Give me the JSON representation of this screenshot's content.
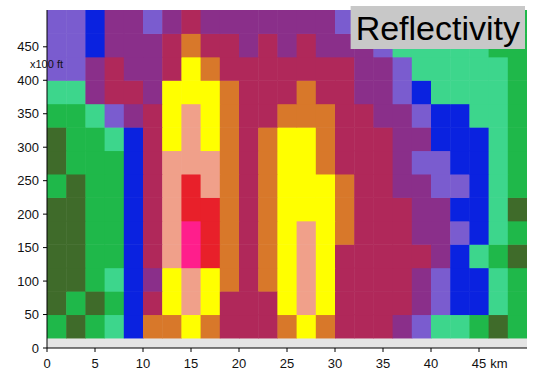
{
  "chart_data": {
    "type": "heatmap",
    "title": "Reflectivity",
    "xlabel": "km",
    "ylabel": "x100 ft",
    "xlim": [
      0,
      50
    ],
    "ylim": [
      0,
      505
    ],
    "xticks": [
      0,
      5,
      10,
      15,
      20,
      25,
      30,
      35,
      40,
      45
    ],
    "yticks": [
      0,
      50,
      100,
      150,
      200,
      250,
      300,
      350,
      400,
      450
    ],
    "x_edges": [
      0,
      2,
      4,
      6,
      8,
      10,
      12,
      14,
      16,
      18,
      20,
      22,
      24,
      26,
      28,
      30,
      32,
      34,
      36,
      38,
      40,
      42,
      44,
      46,
      48,
      50
    ],
    "y_edges": [
      15,
      50,
      85,
      120,
      155,
      190,
      225,
      260,
      295,
      330,
      365,
      400,
      435,
      470,
      505
    ],
    "cells": [
      [
        12,
        8,
        12,
        17,
        22,
        42,
        44,
        47,
        43,
        37,
        36,
        38,
        44,
        48,
        42,
        38,
        37,
        36,
        33,
        27,
        18,
        15,
        14,
        8,
        12
      ],
      [
        8,
        12,
        9,
        14,
        22,
        38,
        47,
        52,
        47,
        38,
        36,
        37,
        46,
        52,
        46,
        38,
        37,
        37,
        36,
        33,
        27,
        22,
        22,
        16,
        14
      ],
      [
        8,
        9,
        12,
        17,
        23,
        33,
        48,
        53,
        49,
        40,
        37,
        40,
        47,
        52,
        48,
        38,
        37,
        38,
        37,
        34,
        28,
        24,
        22,
        17,
        12
      ],
      [
        9,
        8,
        12,
        13,
        24,
        37,
        50,
        62,
        56,
        40,
        38,
        41,
        48,
        53,
        49,
        39,
        38,
        37,
        36,
        35,
        30,
        24,
        18,
        14,
        8
      ],
      [
        8,
        9,
        13,
        12,
        23,
        36,
        51,
        62,
        57,
        41,
        38,
        42,
        48,
        52,
        48,
        40,
        38,
        37,
        36,
        33,
        32,
        26,
        22,
        18,
        14
      ],
      [
        9,
        8,
        12,
        14,
        22,
        37,
        52,
        58,
        55,
        41,
        38,
        42,
        47,
        49,
        46,
        40,
        37,
        36,
        35,
        33,
        30,
        24,
        22,
        17,
        9
      ],
      [
        12,
        9,
        13,
        14,
        24,
        38,
        52,
        57,
        53,
        42,
        38,
        42,
        47,
        48,
        46,
        40,
        37,
        36,
        34,
        30,
        28,
        25,
        23,
        16,
        10
      ],
      [
        8,
        12,
        13,
        12,
        23,
        38,
        51,
        54,
        50,
        41,
        38,
        41,
        46,
        47,
        44,
        39,
        37,
        35,
        33,
        28,
        25,
        22,
        21,
        16,
        12
      ],
      [
        9,
        12,
        13,
        17,
        24,
        38,
        49,
        53,
        48,
        41,
        38,
        40,
        45,
        46,
        43,
        38,
        36,
        35,
        33,
        32,
        23,
        22,
        22,
        17,
        14
      ],
      [
        14,
        12,
        17,
        27,
        34,
        38,
        47,
        51,
        47,
        42,
        37,
        38,
        42,
        44,
        42,
        38,
        35,
        34,
        32,
        26,
        22,
        24,
        17,
        16,
        13
      ],
      [
        17,
        18,
        33,
        37,
        36,
        33,
        46,
        48,
        45,
        41,
        38,
        37,
        39,
        41,
        39,
        37,
        34,
        32,
        27,
        23,
        18,
        17,
        16,
        17,
        14
      ],
      [
        27,
        27,
        33,
        36,
        34,
        32,
        37,
        46,
        42,
        38,
        35,
        36,
        37,
        37,
        36,
        35,
        33,
        30,
        26,
        17,
        16,
        18,
        16,
        17,
        13
      ],
      [
        26,
        27,
        24,
        33,
        32,
        30,
        36,
        41,
        38,
        35,
        34,
        35,
        34,
        35,
        33,
        32,
        30,
        27,
        17,
        16,
        17,
        16,
        15,
        14,
        13
      ],
      [
        26,
        26,
        23,
        31,
        30,
        28,
        33,
        36,
        33,
        32,
        31,
        31,
        31,
        32,
        30,
        28,
        26,
        22,
        17,
        16,
        15,
        14,
        14,
        13,
        12
      ]
    ],
    "color_scale": {
      "bounds": [
        5,
        10,
        15,
        20,
        25,
        30,
        35,
        40,
        45,
        50,
        55,
        60,
        65
      ],
      "colors": [
        "#3f6b2a",
        "#1fb84a",
        "#3dd68c",
        "#0a22e0",
        "#7a5ccf",
        "#8a2f8a",
        "#b0285a",
        "#d8782a",
        "#ffff00",
        "#f0a08a",
        "#e8202a",
        "#ff1e8c"
      ]
    }
  }
}
